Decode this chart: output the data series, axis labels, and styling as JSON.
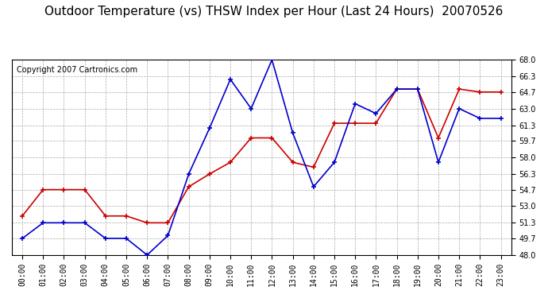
{
  "title": "Outdoor Temperature (vs) THSW Index per Hour (Last 24 Hours)  20070526",
  "copyright": "Copyright 2007 Cartronics.com",
  "hours": [
    "00:00",
    "01:00",
    "02:00",
    "03:00",
    "04:00",
    "05:00",
    "06:00",
    "07:00",
    "08:00",
    "09:00",
    "10:00",
    "11:00",
    "12:00",
    "13:00",
    "14:00",
    "15:00",
    "16:00",
    "17:00",
    "18:00",
    "19:00",
    "20:00",
    "21:00",
    "22:00",
    "23:00"
  ],
  "temp_red": [
    52.0,
    54.7,
    54.7,
    54.7,
    52.0,
    52.0,
    51.3,
    51.3,
    55.0,
    56.3,
    57.5,
    60.0,
    60.0,
    57.5,
    57.0,
    61.5,
    61.5,
    61.5,
    65.0,
    65.0,
    60.0,
    65.0,
    64.7,
    64.7
  ],
  "thsw_blue": [
    49.7,
    51.3,
    51.3,
    51.3,
    49.7,
    49.7,
    48.0,
    50.0,
    56.3,
    61.0,
    66.0,
    63.0,
    68.0,
    60.5,
    55.0,
    57.5,
    63.5,
    62.5,
    65.0,
    65.0,
    57.5,
    63.0,
    62.0,
    62.0
  ],
  "ylim": [
    48.0,
    68.0
  ],
  "yticks": [
    48.0,
    49.7,
    51.3,
    53.0,
    54.7,
    56.3,
    58.0,
    59.7,
    61.3,
    63.0,
    64.7,
    66.3,
    68.0
  ],
  "bg_color": "#ffffff",
  "grid_color": "#aaaaaa",
  "red_color": "#cc0000",
  "blue_color": "#0000cc",
  "title_fontsize": 11,
  "copyright_fontsize": 7
}
